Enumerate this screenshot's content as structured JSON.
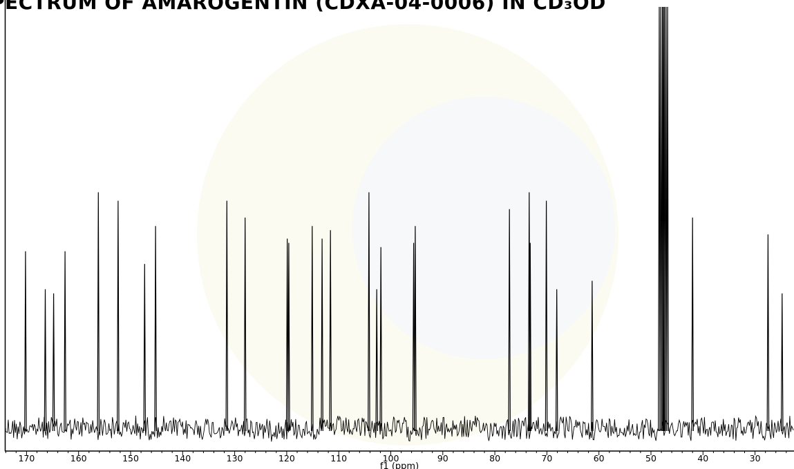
{
  "title": "PECTRUM OF AMAROGENTIN (CDXA-04-0006) IN CD₃OD",
  "chart_data": {
    "type": "line",
    "xlabel": "f1 (ppm)",
    "xlim": [
      175,
      23.8
    ],
    "x_reversed": true,
    "x_ticks": [
      170,
      160,
      150,
      140,
      130,
      120,
      110,
      100,
      90,
      80,
      70,
      60,
      50,
      40,
      30
    ],
    "y_axis_shown": false,
    "grid": false,
    "peaks_relative_height": [
      {
        "ppm": 170.2,
        "height": 0.42
      },
      {
        "ppm": 166.4,
        "height": 0.33
      },
      {
        "ppm": 164.8,
        "height": 0.32
      },
      {
        "ppm": 162.6,
        "height": 0.42
      },
      {
        "ppm": 156.2,
        "height": 0.56
      },
      {
        "ppm": 152.4,
        "height": 0.54
      },
      {
        "ppm": 147.3,
        "height": 0.39
      },
      {
        "ppm": 145.2,
        "height": 0.48
      },
      {
        "ppm": 131.5,
        "height": 0.54
      },
      {
        "ppm": 128.0,
        "height": 0.5
      },
      {
        "ppm": 119.9,
        "height": 0.45
      },
      {
        "ppm": 119.6,
        "height": 0.44
      },
      {
        "ppm": 115.1,
        "height": 0.48
      },
      {
        "ppm": 113.2,
        "height": 0.45
      },
      {
        "ppm": 111.6,
        "height": 0.47
      },
      {
        "ppm": 104.2,
        "height": 0.56
      },
      {
        "ppm": 102.7,
        "height": 0.33
      },
      {
        "ppm": 101.9,
        "height": 0.43
      },
      {
        "ppm": 95.6,
        "height": 0.44
      },
      {
        "ppm": 95.3,
        "height": 0.48
      },
      {
        "ppm": 77.2,
        "height": 0.52
      },
      {
        "ppm": 73.4,
        "height": 0.56
      },
      {
        "ppm": 73.2,
        "height": 0.44
      },
      {
        "ppm": 70.1,
        "height": 0.54
      },
      {
        "ppm": 68.1,
        "height": 0.33
      },
      {
        "ppm": 61.3,
        "height": 0.35
      },
      {
        "ppm": 48.4,
        "height": 1.0
      },
      {
        "ppm": 48.1,
        "height": 1.0
      },
      {
        "ppm": 47.8,
        "height": 1.0
      },
      {
        "ppm": 47.6,
        "height": 1.0
      },
      {
        "ppm": 47.4,
        "height": 1.0
      },
      {
        "ppm": 47.1,
        "height": 1.0
      },
      {
        "ppm": 46.8,
        "height": 1.0
      },
      {
        "ppm": 42.0,
        "height": 0.5
      },
      {
        "ppm": 27.5,
        "height": 0.46
      },
      {
        "ppm": 24.8,
        "height": 0.32
      }
    ]
  }
}
